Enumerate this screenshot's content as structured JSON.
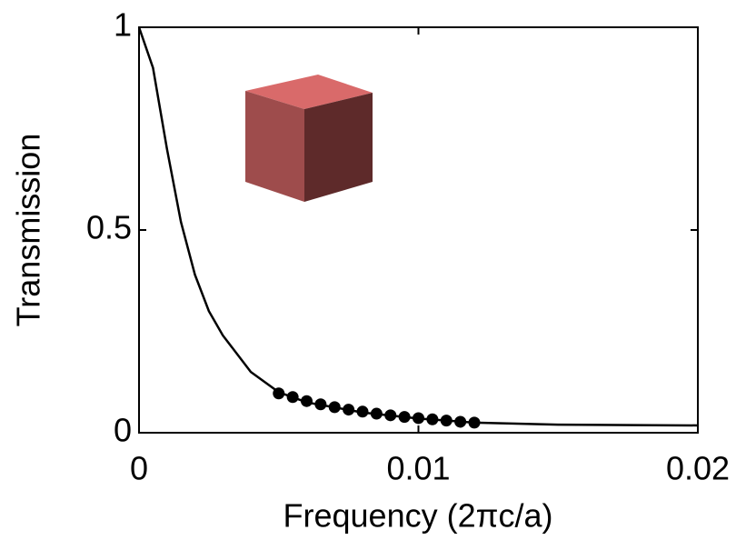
{
  "chart_data": {
    "type": "line",
    "x_label": "Frequency (2πc/a)",
    "y_label": "Transmission",
    "xlim": [
      0,
      0.02
    ],
    "ylim": [
      0,
      1
    ],
    "xticks": [
      0,
      0.01,
      0.02
    ],
    "yticks": [
      0,
      0.5,
      1
    ],
    "series": [
      {
        "type": "line",
        "color": "#000000",
        "x": [
          0,
          0.0005,
          0.001,
          0.0015,
          0.002,
          0.0025,
          0.003,
          0.004,
          0.005,
          0.006,
          0.008,
          0.01,
          0.012,
          0.015,
          0.02
        ],
        "values": [
          1,
          0.9,
          0.7,
          0.52,
          0.39,
          0.3,
          0.24,
          0.15,
          0.1,
          0.075,
          0.05,
          0.035,
          0.025,
          0.02,
          0.018
        ]
      },
      {
        "type": "scatter",
        "color": "#000000",
        "x": [
          0.005,
          0.0055,
          0.006,
          0.0065,
          0.007,
          0.0075,
          0.008,
          0.0085,
          0.009,
          0.0095,
          0.01,
          0.0105,
          0.011,
          0.0115,
          0.012
        ],
        "values": [
          0.097,
          0.088,
          0.078,
          0.07,
          0.063,
          0.057,
          0.052,
          0.047,
          0.043,
          0.039,
          0.036,
          0.033,
          0.03,
          0.027,
          0.025
        ]
      }
    ]
  }
}
